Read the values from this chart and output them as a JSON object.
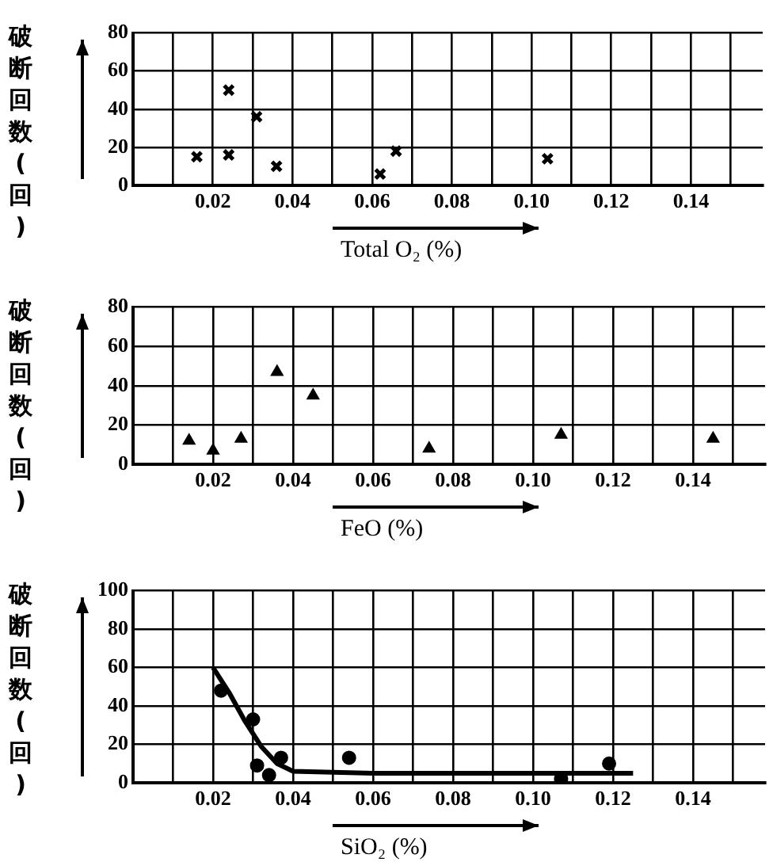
{
  "chart_data": [
    {
      "type": "scatter",
      "ylabel": "破断回数(回)",
      "xlabel": "Total O₂ (%)",
      "marker": "cross",
      "grid": true,
      "color": "#000000",
      "x": [
        0.016,
        0.024,
        0.024,
        0.031,
        0.036,
        0.062,
        0.066,
        0.104
      ],
      "values": [
        15,
        16,
        50,
        36,
        10,
        6,
        18,
        14
      ],
      "xlim": [
        0,
        0.158
      ],
      "ylim": [
        0,
        80
      ],
      "yticks": [
        0,
        20,
        40,
        60,
        80
      ],
      "xticks": [
        {
          "value": 0.01,
          "label": null
        },
        0.02,
        {
          "value": 0.03,
          "label": null
        },
        0.04,
        {
          "value": 0.05,
          "label": null
        },
        0.06,
        {
          "value": 0.07,
          "label": null
        },
        0.08,
        {
          "value": 0.09,
          "label": null
        },
        {
          "value": 0.1,
          "label": "0.10"
        },
        {
          "value": 0.11,
          "label": null
        },
        0.12,
        {
          "value": 0.13,
          "label": null
        },
        0.14,
        {
          "value": 0.15,
          "label": null
        }
      ]
    },
    {
      "type": "scatter",
      "ylabel": "破断回数(回)",
      "xlabel": "FeO (%)",
      "marker": "triangle",
      "grid": true,
      "color": "#000000",
      "x": [
        0.014,
        0.02,
        0.027,
        0.036,
        0.045,
        0.074,
        0.107,
        0.145
      ],
      "values": [
        12,
        7,
        13,
        47,
        35,
        8,
        15,
        13
      ],
      "xlim": [
        0,
        0.158
      ],
      "ylim": [
        0,
        80
      ],
      "yticks": [
        0,
        20,
        40,
        60,
        80
      ],
      "xticks": [
        {
          "value": 0.01,
          "label": null
        },
        0.02,
        {
          "value": 0.03,
          "label": null
        },
        0.04,
        {
          "value": 0.05,
          "label": null
        },
        0.06,
        {
          "value": 0.07,
          "label": null
        },
        0.08,
        {
          "value": 0.09,
          "label": null
        },
        {
          "value": 0.1,
          "label": "0.10"
        },
        {
          "value": 0.11,
          "label": null
        },
        0.12,
        {
          "value": 0.13,
          "label": null
        },
        0.14,
        {
          "value": 0.15,
          "label": null
        }
      ]
    },
    {
      "type": "scatter",
      "ylabel": "破断回数(回)",
      "xlabel": "SiO₂ (%)",
      "grid": true,
      "series": [
        {
          "type": "scatter",
          "marker": "circle",
          "color": "#000000",
          "x": [
            0.022,
            0.03,
            0.031,
            0.034,
            0.037,
            0.054,
            0.107,
            0.119
          ],
          "values": [
            48,
            33,
            9,
            4,
            13,
            13,
            2,
            10
          ]
        },
        {
          "type": "line",
          "marker": "none",
          "color": "#000000",
          "x": [
            0.02,
            0.024,
            0.028,
            0.032,
            0.036,
            0.04,
            0.06,
            0.1,
            0.125
          ],
          "values": [
            60,
            47,
            32,
            19,
            10,
            6,
            5,
            5,
            5
          ]
        }
      ],
      "xlim": [
        0,
        0.158
      ],
      "ylim": [
        0,
        100
      ],
      "yticks": [
        0,
        20,
        40,
        60,
        80,
        100
      ],
      "xticks": [
        {
          "value": 0.01,
          "label": null
        },
        0.02,
        {
          "value": 0.03,
          "label": null
        },
        0.04,
        {
          "value": 0.05,
          "label": null
        },
        0.06,
        {
          "value": 0.07,
          "label": null
        },
        0.08,
        {
          "value": 0.09,
          "label": null
        },
        {
          "value": 0.1,
          "label": "0.10"
        },
        {
          "value": 0.11,
          "label": null
        },
        0.12,
        {
          "value": 0.13,
          "label": null
        },
        0.14,
        {
          "value": 0.15,
          "label": null
        }
      ]
    }
  ]
}
